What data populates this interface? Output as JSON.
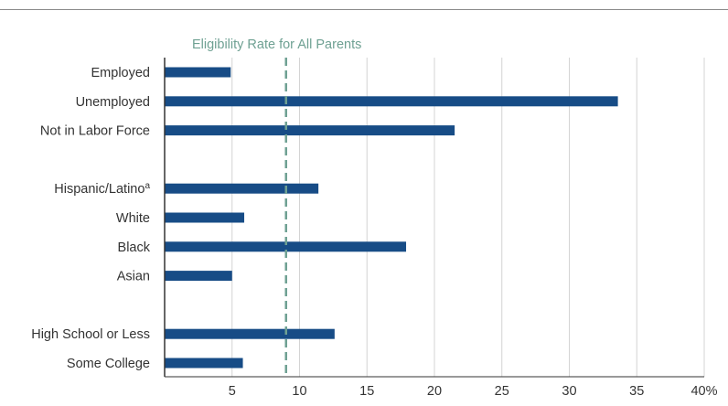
{
  "chart_data": {
    "type": "bar",
    "orientation": "horizontal",
    "categories": [
      "Employed",
      "Unemployed",
      "Not in Labor Force",
      "",
      "Hispanic/Latino",
      "White",
      "Black",
      "Asian",
      "",
      "High School or Less",
      "Some College"
    ],
    "category_superscripts": [
      "",
      "",
      "",
      "",
      "a",
      "",
      "",
      "",
      "",
      "",
      ""
    ],
    "values": [
      4.9,
      33.6,
      21.5,
      null,
      11.4,
      5.9,
      17.9,
      5.0,
      null,
      12.6,
      5.8
    ],
    "xlim": [
      0,
      40
    ],
    "ticks": [
      5,
      10,
      15,
      20,
      25,
      30,
      35,
      40
    ],
    "tick_labels": [
      "5",
      "10",
      "15",
      "20",
      "25",
      "30",
      "35",
      "40%"
    ],
    "reference_line": {
      "value": 9.0,
      "label": "Eligibility Rate for All Parents",
      "style": "dashed"
    },
    "grid": "vertical",
    "title": "",
    "xlabel": "",
    "ylabel": ""
  },
  "colors": {
    "bar": "#174c86",
    "reference": "#6fa193",
    "grid": "#d4d4d4",
    "axis": "#333333"
  }
}
